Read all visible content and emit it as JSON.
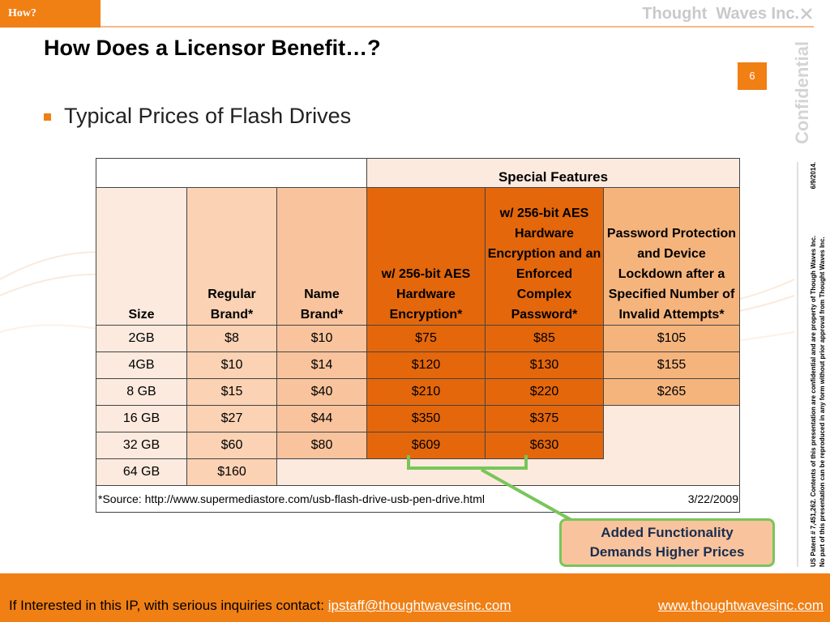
{
  "header": {
    "tag": "How?",
    "company": "Thought  Waves Inc."
  },
  "slide": {
    "title": "How Does a Licensor Benefit…?",
    "page_number": "6",
    "bullet": "Typical Prices of Flash Drives",
    "confidential": "Confidential"
  },
  "table": {
    "special_features_label": "Special Features",
    "headers": [
      "Size",
      "Regular Brand*",
      "Name Brand*",
      "w/ 256-bit AES Hardware Encryption*",
      "w/ 256-bit AES Hardware Encryption and an Enforced Complex Password*",
      "Password Protection and Device Lockdown after a Specified Number of Invalid Attempts*"
    ],
    "rows": [
      [
        "2GB",
        "$8",
        "$10",
        "$75",
        "$85",
        "$105"
      ],
      [
        "4GB",
        "$10",
        "$14",
        "$120",
        "$130",
        "$155"
      ],
      [
        "8 GB",
        "$15",
        "$40",
        "$210",
        "$220",
        "$265"
      ],
      [
        "16 GB",
        "$27",
        "$44",
        "$350",
        "$375"
      ],
      [
        "32 GB",
        "$60",
        "$80",
        "$609",
        "$630"
      ],
      [
        "64 GB",
        "$160"
      ]
    ],
    "source": "*Source: http://www.supermediastore.com/usb-flash-drive-usb-pen-drive.html",
    "source_date": "3/22/2009"
  },
  "callout": {
    "line1": "Added Functionality",
    "line2": "Demands Higher Prices"
  },
  "legal": {
    "line1": "US Patent # 7,451,262. Contents of this presentation are confidential and are property of Though Waves Inc.",
    "line1_date": "6/9/2014.",
    "line2": "No part of this presentation  can be reproduced in any form without prior approval from Thought Waves Inc."
  },
  "footer": {
    "text": "If Interested in this IP, with serious inquiries contact: ",
    "email": "ipstaff@thoughtwavesinc.com",
    "website": "www.thoughtwavesinc.com"
  },
  "colors": {
    "accent_orange": "#f07f14",
    "dark_orange": "#e4670c",
    "light_peach": "#fdeade",
    "callout_border": "#79c55a",
    "callout_text": "#1a2d50"
  }
}
